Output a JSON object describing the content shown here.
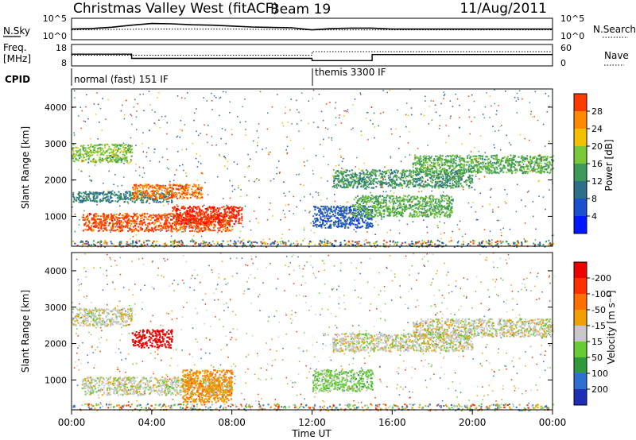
{
  "header": {
    "station": "Christmas Valley West (fitACF)",
    "beam": "Beam 19",
    "date": "11/Aug/2011"
  },
  "sky_panel": {
    "left_label": "N.Sky",
    "right_label": "N.Search",
    "left_ticks": [
      "10^5",
      "10^0"
    ],
    "right_ticks": [
      "10^5",
      "10^0"
    ]
  },
  "freq_panel": {
    "left_label_line1": "Freq.",
    "left_label_line2": "[MHz]",
    "right_label": "Nave",
    "left_ticks": [
      "18",
      "8"
    ],
    "right_ticks": [
      "60",
      "0"
    ]
  },
  "cpid": {
    "label": "CPID",
    "mode1": "normal (fast) 151 IF",
    "mode2": "themis 3300 IF"
  },
  "time_axis": {
    "title": "Time UT",
    "ticks": [
      "00:00",
      "04:00",
      "08:00",
      "12:00",
      "16:00",
      "20:00",
      "00:00"
    ]
  },
  "power_panel": {
    "ylabel": "Slant Range [km]",
    "yticks": [
      "1000",
      "2000",
      "3000",
      "4000"
    ],
    "colorbar_label": "Power [dB]",
    "colorbar_ticks": [
      "4",
      "8",
      "12",
      "16",
      "20",
      "24",
      "28"
    ],
    "colors": [
      "#0018ff",
      "#1a4fd0",
      "#2c6f8a",
      "#3e9a5a",
      "#7ac83a",
      "#f3c000",
      "#ff8a00",
      "#ff3a00",
      "#ff0000"
    ]
  },
  "velocity_panel": {
    "ylabel": "Slant Range [km]",
    "yticks": [
      "1000",
      "2000",
      "3000",
      "4000"
    ],
    "colorbar_label": "Velocity [m s⁻¹]",
    "colorbar_ticks": [
      "200",
      "100",
      "50",
      "15",
      "-15",
      "-50",
      "-100",
      "-200"
    ],
    "colors": [
      "#1c2fb5",
      "#2f6fd0",
      "#2f9a3a",
      "#66cc33",
      "#c8c8c8",
      "#f0a000",
      "#ff7000",
      "#ff3000",
      "#ee0000"
    ]
  },
  "chart_data": [
    {
      "type": "line",
      "title": "N.Sky / N.Search",
      "x_range": [
        "00:00",
        "24:00"
      ],
      "ylim": [
        1,
        100000
      ],
      "y_scale": "log",
      "series": [
        {
          "name": "N.Sky",
          "x": [
            0,
            1,
            2,
            3,
            4,
            5,
            6,
            7,
            8,
            9,
            10,
            11,
            12,
            13,
            14,
            15,
            16,
            17,
            18,
            19,
            20,
            21,
            22,
            23,
            24
          ],
          "values": [
            300,
            400,
            800,
            2500,
            6000,
            5000,
            3000,
            2500,
            1500,
            900,
            700,
            600,
            200,
            400,
            500,
            500,
            300,
            300,
            300,
            300,
            300,
            300,
            300,
            300,
            300
          ]
        },
        {
          "name": "N.Search",
          "x": [
            0,
            4,
            8,
            12,
            16,
            20,
            24
          ],
          "values": [
            200,
            300,
            300,
            200,
            200,
            200,
            200
          ]
        }
      ]
    },
    {
      "type": "line",
      "title": "Freq / Nave",
      "x_range": [
        "00:00",
        "24:00"
      ],
      "ylim": [
        8,
        18
      ],
      "series": [
        {
          "name": "Freq.",
          "x": [
            0,
            3,
            3,
            12,
            12,
            15,
            15,
            24
          ],
          "values": [
            13.5,
            13.5,
            11.5,
            11.5,
            10.5,
            10.5,
            13.3,
            13.3
          ]
        },
        {
          "name": "Nave",
          "x": [
            0,
            12,
            12,
            24
          ],
          "values": [
            30,
            30,
            40,
            40
          ]
        }
      ]
    },
    {
      "type": "heatmap",
      "title": "Power [dB]",
      "xlabel": "Time UT",
      "ylabel": "Slant Range [km]",
      "x_range": [
        "00:00",
        "24:00"
      ],
      "ylim": [
        180,
        4500
      ],
      "color_range": [
        0,
        32
      ],
      "regions": [
        {
          "t0": 0.0,
          "t1": 3.0,
          "r0": 2500,
          "r1": 3000,
          "value": 16
        },
        {
          "t0": 0.0,
          "t1": 5.0,
          "r0": 1400,
          "r1": 1700,
          "value": 10
        },
        {
          "t0": 0.5,
          "t1": 8.0,
          "r0": 600,
          "r1": 1100,
          "value": 26
        },
        {
          "t0": 3.0,
          "t1": 6.5,
          "r0": 1500,
          "r1": 1900,
          "value": 24
        },
        {
          "t0": 5.0,
          "t1": 8.5,
          "r0": 800,
          "r1": 1300,
          "value": 28
        },
        {
          "t0": 12.0,
          "t1": 15.0,
          "r0": 700,
          "r1": 1300,
          "value": 6
        },
        {
          "t0": 13.0,
          "t1": 20.0,
          "r0": 1800,
          "r1": 2300,
          "value": 12
        },
        {
          "t0": 14.0,
          "t1": 19.0,
          "r0": 1000,
          "r1": 1600,
          "value": 14
        },
        {
          "t0": 17.0,
          "t1": 24.0,
          "r0": 2200,
          "r1": 2700,
          "value": 14
        }
      ]
    },
    {
      "type": "heatmap",
      "title": "Velocity [m s-1]",
      "xlabel": "Time UT",
      "ylabel": "Slant Range [km]",
      "x_range": [
        "00:00",
        "24:00"
      ],
      "ylim": [
        180,
        4500
      ],
      "color_range": [
        -200,
        200
      ],
      "regions": [
        {
          "t0": 0.0,
          "t1": 3.0,
          "r0": 2500,
          "r1": 3000,
          "value": 0
        },
        {
          "t0": 0.5,
          "t1": 8.0,
          "r0": 600,
          "r1": 1100,
          "value": 0
        },
        {
          "t0": 3.0,
          "t1": 5.0,
          "r0": 1900,
          "r1": 2400,
          "value": -200
        },
        {
          "t0": 5.5,
          "t1": 8.0,
          "r0": 400,
          "r1": 1300,
          "value": -60
        },
        {
          "t0": 12.0,
          "t1": 15.0,
          "r0": 700,
          "r1": 1300,
          "value": 40
        },
        {
          "t0": 13.0,
          "t1": 20.0,
          "r0": 1800,
          "r1": 2300,
          "value": 0
        },
        {
          "t0": 17.0,
          "t1": 24.0,
          "r0": 2200,
          "r1": 2700,
          "value": 0
        }
      ]
    }
  ]
}
